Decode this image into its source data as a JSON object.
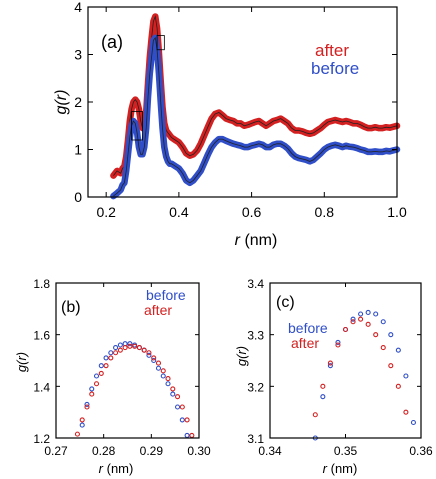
{
  "colors": {
    "after": "#d42020",
    "before": "#2f4ec8",
    "axis": "#000000"
  },
  "chart_data": [
    {
      "type": "line",
      "panel": "(a)",
      "xlabel_var": "r",
      "xlabel_unit": "(nm)",
      "ylabel": "g(r)",
      "xlim": [
        0.15,
        1.0
      ],
      "ylim": [
        0,
        4
      ],
      "xticks": [
        0.2,
        0.4,
        0.6,
        0.8,
        1.0
      ],
      "xtick_labels": [
        "0.2",
        "0.4",
        "0.6",
        "0.8",
        "1.0"
      ],
      "yticks": [
        0,
        1,
        2,
        3,
        4
      ],
      "ytick_labels": [
        "0",
        "1",
        "2",
        "3",
        "4"
      ],
      "legend_placement": "top-right",
      "series": [
        {
          "name": "after",
          "color": "after",
          "x": [
            0.22,
            0.23,
            0.24,
            0.245,
            0.25,
            0.255,
            0.26,
            0.265,
            0.27,
            0.275,
            0.28,
            0.285,
            0.29,
            0.295,
            0.3,
            0.305,
            0.31,
            0.315,
            0.32,
            0.325,
            0.33,
            0.335,
            0.34,
            0.345,
            0.35,
            0.355,
            0.36,
            0.365,
            0.37,
            0.375,
            0.38,
            0.39,
            0.4,
            0.41,
            0.42,
            0.43,
            0.44,
            0.45,
            0.46,
            0.47,
            0.48,
            0.49,
            0.5,
            0.51,
            0.52,
            0.53,
            0.54,
            0.55,
            0.56,
            0.57,
            0.58,
            0.59,
            0.6,
            0.61,
            0.62,
            0.63,
            0.64,
            0.65,
            0.66,
            0.67,
            0.68,
            0.69,
            0.7,
            0.71,
            0.72,
            0.73,
            0.74,
            0.75,
            0.76,
            0.77,
            0.78,
            0.79,
            0.8,
            0.81,
            0.82,
            0.83,
            0.84,
            0.85,
            0.86,
            0.87,
            0.88,
            0.89,
            0.9,
            0.91,
            0.92,
            0.93,
            0.94,
            0.95,
            0.96,
            0.97,
            0.98,
            0.99,
            1.0
          ],
          "y": [
            0.45,
            0.55,
            0.5,
            0.6,
            0.65,
            0.85,
            1.2,
            1.6,
            1.85,
            2.0,
            2.05,
            2.0,
            1.85,
            1.6,
            1.45,
            1.5,
            1.8,
            2.4,
            2.95,
            3.35,
            3.7,
            3.8,
            3.55,
            3.05,
            2.45,
            1.9,
            1.55,
            1.4,
            1.35,
            1.3,
            1.25,
            1.2,
            1.15,
            1.05,
            0.92,
            0.87,
            0.9,
            0.98,
            1.12,
            1.3,
            1.48,
            1.65,
            1.75,
            1.78,
            1.72,
            1.65,
            1.62,
            1.6,
            1.55,
            1.55,
            1.5,
            1.52,
            1.55,
            1.58,
            1.6,
            1.55,
            1.5,
            1.55,
            1.6,
            1.62,
            1.65,
            1.6,
            1.55,
            1.45,
            1.4,
            1.4,
            1.38,
            1.35,
            1.33,
            1.35,
            1.4,
            1.45,
            1.52,
            1.58,
            1.6,
            1.62,
            1.6,
            1.58,
            1.6,
            1.58,
            1.55,
            1.55,
            1.52,
            1.48,
            1.45,
            1.45,
            1.47,
            1.45,
            1.45,
            1.47,
            1.46,
            1.48,
            1.5
          ]
        },
        {
          "name": "before",
          "color": "before",
          "x": [
            0.22,
            0.23,
            0.24,
            0.245,
            0.25,
            0.255,
            0.26,
            0.265,
            0.27,
            0.275,
            0.28,
            0.285,
            0.29,
            0.295,
            0.3,
            0.305,
            0.31,
            0.315,
            0.32,
            0.325,
            0.33,
            0.335,
            0.34,
            0.345,
            0.35,
            0.355,
            0.36,
            0.365,
            0.37,
            0.375,
            0.38,
            0.39,
            0.4,
            0.41,
            0.42,
            0.43,
            0.44,
            0.45,
            0.46,
            0.47,
            0.48,
            0.49,
            0.5,
            0.51,
            0.52,
            0.53,
            0.54,
            0.55,
            0.56,
            0.57,
            0.58,
            0.59,
            0.6,
            0.61,
            0.62,
            0.63,
            0.64,
            0.65,
            0.66,
            0.67,
            0.68,
            0.69,
            0.7,
            0.71,
            0.72,
            0.73,
            0.74,
            0.75,
            0.76,
            0.77,
            0.78,
            0.79,
            0.8,
            0.81,
            0.82,
            0.83,
            0.84,
            0.85,
            0.86,
            0.87,
            0.88,
            0.89,
            0.9,
            0.91,
            0.92,
            0.93,
            0.94,
            0.95,
            0.96,
            0.97,
            0.98,
            0.99,
            1.0
          ],
          "y": [
            0.02,
            0.08,
            0.15,
            0.25,
            0.3,
            0.55,
            0.9,
            1.25,
            1.5,
            1.6,
            1.55,
            1.35,
            1.05,
            0.9,
            0.9,
            1.05,
            1.45,
            2.1,
            2.6,
            2.95,
            3.3,
            3.35,
            3.1,
            2.6,
            2.0,
            1.45,
            1.05,
            0.85,
            0.75,
            0.7,
            0.7,
            0.65,
            0.6,
            0.5,
            0.35,
            0.3,
            0.35,
            0.45,
            0.55,
            0.72,
            0.9,
            1.05,
            1.15,
            1.22,
            1.22,
            1.18,
            1.15,
            1.12,
            1.1,
            1.08,
            1.05,
            1.05,
            1.08,
            1.1,
            1.12,
            1.1,
            1.05,
            1.05,
            1.1,
            1.12,
            1.12,
            1.08,
            1.02,
            0.92,
            0.85,
            0.82,
            0.8,
            0.78,
            0.75,
            0.78,
            0.85,
            0.92,
            1.0,
            1.05,
            1.08,
            1.1,
            1.08,
            1.05,
            1.08,
            1.06,
            1.05,
            1.03,
            1.0,
            0.98,
            0.95,
            0.95,
            0.96,
            0.95,
            0.95,
            0.97,
            0.96,
            0.98,
            1.0
          ]
        }
      ]
    },
    {
      "type": "scatter",
      "panel": "(b)",
      "xlabel_var": "r",
      "xlabel_unit": "(nm)",
      "ylabel": "g(r)",
      "xlim": [
        0.27,
        0.3
      ],
      "ylim": [
        1.2,
        1.8
      ],
      "xticks": [
        0.27,
        0.28,
        0.29,
        0.3
      ],
      "xtick_labels": [
        "0.27",
        "0.28",
        "0.29",
        "0.30"
      ],
      "yticks": [
        1.2,
        1.4,
        1.6,
        1.8
      ],
      "ytick_labels": [
        "1.2",
        "1.4",
        "1.6",
        "1.8"
      ],
      "legend_placement": "top-right",
      "series": [
        {
          "name": "before",
          "color": "before",
          "x": [
            0.2755,
            0.2765,
            0.2775,
            0.2785,
            0.2795,
            0.2805,
            0.2815,
            0.2825,
            0.2835,
            0.2845,
            0.2855,
            0.2865,
            0.2875,
            0.2885,
            0.2895,
            0.2905,
            0.2915,
            0.2925,
            0.2935,
            0.2945,
            0.2955,
            0.2965,
            0.2975
          ],
          "y": [
            1.25,
            1.33,
            1.39,
            1.44,
            1.48,
            1.51,
            1.53,
            1.55,
            1.56,
            1.565,
            1.565,
            1.56,
            1.55,
            1.54,
            1.52,
            1.5,
            1.47,
            1.44,
            1.41,
            1.37,
            1.32,
            1.27,
            1.21
          ]
        },
        {
          "name": "after",
          "color": "after",
          "x": [
            0.2745,
            0.2755,
            0.2765,
            0.2775,
            0.2785,
            0.2795,
            0.2805,
            0.2815,
            0.2825,
            0.2835,
            0.2845,
            0.2855,
            0.2865,
            0.2875,
            0.2885,
            0.2895,
            0.2905,
            0.2915,
            0.2925,
            0.2935,
            0.2945,
            0.2955,
            0.2965,
            0.2975,
            0.2985
          ],
          "y": [
            1.215,
            1.27,
            1.32,
            1.37,
            1.41,
            1.45,
            1.48,
            1.51,
            1.53,
            1.54,
            1.55,
            1.555,
            1.555,
            1.55,
            1.54,
            1.53,
            1.51,
            1.49,
            1.46,
            1.43,
            1.39,
            1.36,
            1.32,
            1.27,
            1.21
          ]
        }
      ]
    },
    {
      "type": "scatter",
      "panel": "(c)",
      "xlabel_var": "r",
      "xlabel_unit": "(nm)",
      "ylabel": "g(r)",
      "xlim": [
        0.34,
        0.36
      ],
      "ylim": [
        3.1,
        3.4
      ],
      "xticks": [
        0.34,
        0.35,
        0.36
      ],
      "xtick_labels": [
        "0.34",
        "0.35",
        "0.36"
      ],
      "yticks": [
        3.1,
        3.2,
        3.3,
        3.4
      ],
      "ytick_labels": [
        "3.1",
        "3.2",
        "3.3",
        "3.4"
      ],
      "legend_placement": "top-left",
      "series": [
        {
          "name": "before",
          "color": "before",
          "x": [
            0.346,
            0.347,
            0.348,
            0.349,
            0.35,
            0.351,
            0.352,
            0.353,
            0.354,
            0.355,
            0.356,
            0.357,
            0.358,
            0.359
          ],
          "y": [
            3.1,
            3.18,
            3.24,
            3.285,
            3.31,
            3.33,
            3.34,
            3.343,
            3.34,
            3.325,
            3.3,
            3.27,
            3.22,
            3.13
          ]
        },
        {
          "name": "after",
          "color": "after",
          "x": [
            0.346,
            0.347,
            0.348,
            0.349,
            0.35,
            0.351,
            0.352,
            0.353,
            0.354,
            0.355,
            0.356,
            0.357,
            0.358
          ],
          "y": [
            3.145,
            3.2,
            3.245,
            3.28,
            3.31,
            3.325,
            3.33,
            3.32,
            3.3,
            3.275,
            3.24,
            3.2,
            3.15
          ]
        }
      ]
    }
  ]
}
